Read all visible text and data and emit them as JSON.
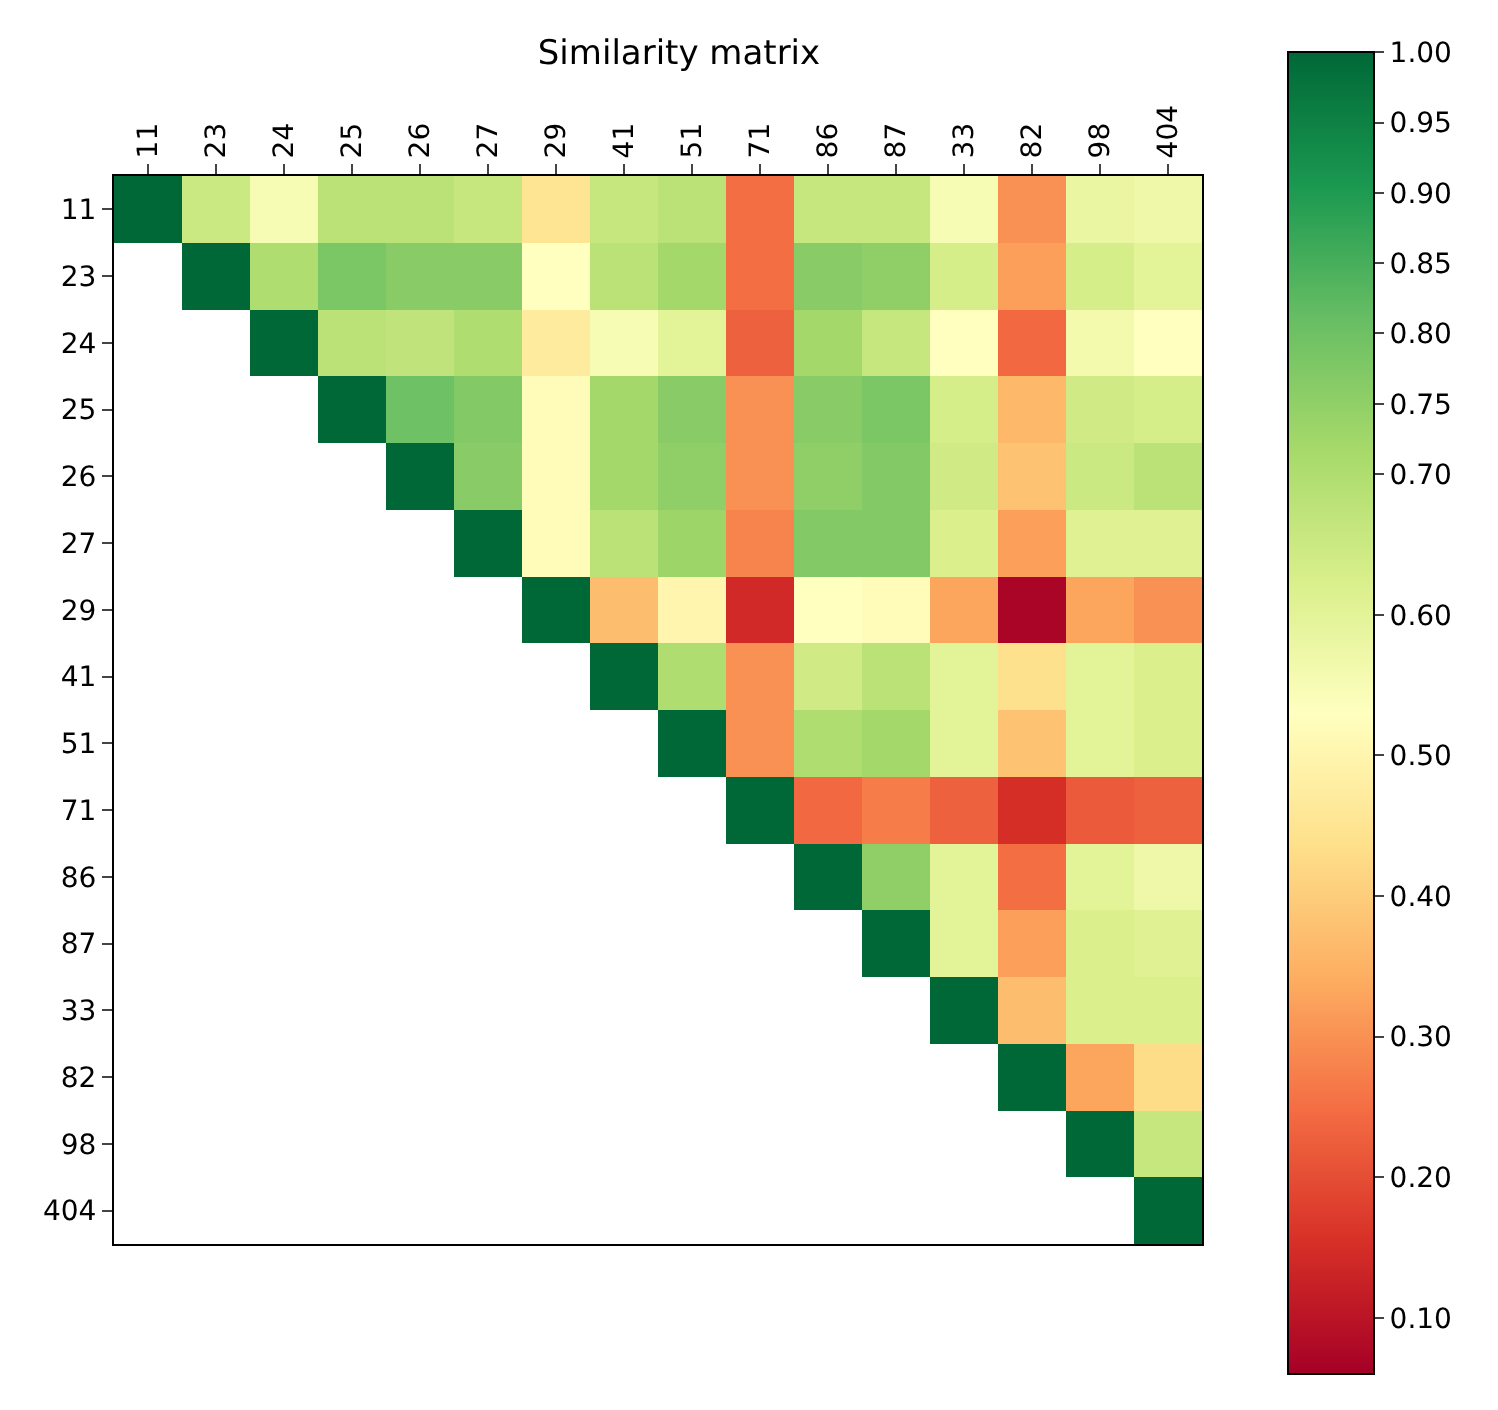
{
  "chart_data": {
    "type": "heatmap",
    "title": "Similarity matrix",
    "categories": [
      "11",
      "23",
      "24",
      "25",
      "26",
      "27",
      "29",
      "41",
      "51",
      "71",
      "86",
      "87",
      "33",
      "82",
      "98",
      "404"
    ],
    "y_categories": [
      "11",
      "23",
      "24",
      "25",
      "26",
      "27",
      "29",
      "41",
      "51",
      "71",
      "86",
      "87",
      "33",
      "82",
      "98",
      "404"
    ],
    "cells": [
      [
        1.0,
        0.65,
        0.55,
        0.68,
        0.68,
        0.66,
        0.45,
        0.66,
        0.68,
        0.25,
        0.66,
        0.66,
        0.55,
        0.3,
        0.58,
        0.57
      ],
      [
        null,
        1.0,
        0.7,
        0.78,
        0.76,
        0.76,
        0.53,
        0.68,
        0.72,
        0.25,
        0.76,
        0.75,
        0.63,
        0.32,
        0.63,
        0.6
      ],
      [
        null,
        null,
        1.0,
        0.68,
        0.67,
        0.7,
        0.47,
        0.55,
        0.6,
        0.23,
        0.72,
        0.66,
        0.53,
        0.24,
        0.56,
        0.53
      ],
      [
        null,
        null,
        null,
        1.0,
        0.8,
        0.77,
        0.52,
        0.72,
        0.76,
        0.3,
        0.76,
        0.78,
        0.63,
        0.36,
        0.64,
        0.63
      ],
      [
        null,
        null,
        null,
        null,
        1.0,
        0.76,
        0.52,
        0.72,
        0.75,
        0.3,
        0.75,
        0.77,
        0.64,
        0.38,
        0.65,
        0.68
      ],
      [
        null,
        null,
        null,
        null,
        null,
        1.0,
        0.52,
        0.68,
        0.73,
        0.28,
        0.77,
        0.77,
        0.62,
        0.32,
        0.61,
        0.61
      ],
      [
        null,
        null,
        null,
        null,
        null,
        null,
        1.0,
        0.37,
        0.5,
        0.14,
        0.53,
        0.52,
        0.33,
        0.07,
        0.33,
        0.3
      ],
      [
        null,
        null,
        null,
        null,
        null,
        null,
        null,
        1.0,
        0.7,
        0.3,
        0.64,
        0.68,
        0.6,
        0.44,
        0.6,
        0.62
      ],
      [
        null,
        null,
        null,
        null,
        null,
        null,
        null,
        null,
        1.0,
        0.3,
        0.7,
        0.72,
        0.6,
        0.38,
        0.6,
        0.62
      ],
      [
        null,
        null,
        null,
        null,
        null,
        null,
        null,
        null,
        null,
        1.0,
        0.24,
        0.27,
        0.23,
        0.15,
        0.22,
        0.23
      ],
      [
        null,
        null,
        null,
        null,
        null,
        null,
        null,
        null,
        null,
        null,
        1.0,
        0.75,
        0.6,
        0.25,
        0.6,
        0.57
      ],
      [
        null,
        null,
        null,
        null,
        null,
        null,
        null,
        null,
        null,
        null,
        null,
        1.0,
        0.6,
        0.32,
        0.62,
        0.61
      ],
      [
        null,
        null,
        null,
        null,
        null,
        null,
        null,
        null,
        null,
        null,
        null,
        null,
        1.0,
        0.37,
        0.62,
        0.62
      ],
      [
        null,
        null,
        null,
        null,
        null,
        null,
        null,
        null,
        null,
        null,
        null,
        null,
        null,
        1.0,
        0.33,
        0.43
      ],
      [
        null,
        null,
        null,
        null,
        null,
        null,
        null,
        null,
        null,
        null,
        null,
        null,
        null,
        null,
        1.0,
        0.66
      ],
      [
        null,
        null,
        null,
        null,
        null,
        null,
        null,
        null,
        null,
        null,
        null,
        null,
        null,
        null,
        null,
        1.0
      ]
    ],
    "clim": [
      0.06,
      1.0
    ],
    "cticks": [
      {
        "value": 0.1,
        "label": "0.10"
      },
      {
        "value": 0.2,
        "label": "0.20"
      },
      {
        "value": 0.3,
        "label": "0.30"
      },
      {
        "value": 0.4,
        "label": "0.40"
      },
      {
        "value": 0.5,
        "label": "0.50"
      },
      {
        "value": 0.6,
        "label": "0.60"
      },
      {
        "value": 0.7,
        "label": "0.70"
      },
      0.75,
      {
        "value": 0.8,
        "label": "0.80"
      },
      0.85,
      {
        "value": 0.9,
        "label": "0.90"
      },
      0.95,
      {
        "value": 1.0,
        "label": "1.00"
      }
    ]
  }
}
